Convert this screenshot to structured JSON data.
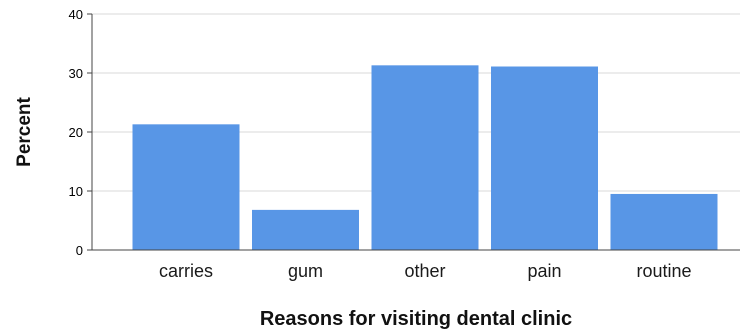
{
  "chart_data": {
    "type": "bar",
    "categories": [
      "carries",
      "gum",
      "other",
      "pain",
      "routine"
    ],
    "values": [
      21.3,
      6.8,
      31.3,
      31.1,
      9.5
    ],
    "xlabel": "Reasons for visiting dental clinic",
    "ylabel": "Percent",
    "ylim": [
      0,
      40
    ],
    "yticks": [
      0,
      10,
      20,
      30,
      40
    ],
    "grid": "horizontal",
    "bar_color": "#5896e6",
    "grid_color": "#d9d9d9"
  }
}
